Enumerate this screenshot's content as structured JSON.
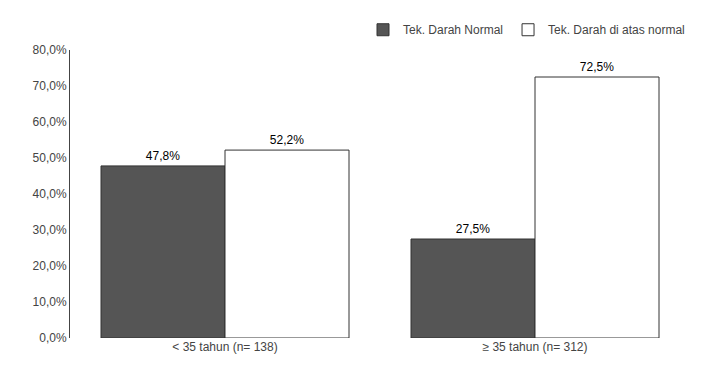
{
  "chart_data": {
    "type": "bar",
    "categories": [
      "< 35 tahun (n= 138)",
      "≥ 35 tahun (n= 312)"
    ],
    "series": [
      {
        "name": "Tek. Darah Normal",
        "color": "#555555",
        "values": [
          47.8,
          27.5
        ],
        "value_labels": [
          "47,8%",
          "27,5%"
        ]
      },
      {
        "name": "Tek. Darah di atas normal",
        "color": "#ffffff",
        "values": [
          52.2,
          72.5
        ],
        "value_labels": [
          "52,2%",
          "72,5%"
        ]
      }
    ],
    "ylim": [
      0,
      80
    ],
    "yticks": [
      {
        "value": 0,
        "label": "0,0%"
      },
      {
        "value": 10,
        "label": "10,0%"
      },
      {
        "value": 20,
        "label": "20,0%"
      },
      {
        "value": 30,
        "label": "30,0%"
      },
      {
        "value": 40,
        "label": "40,0%"
      },
      {
        "value": 50,
        "label": "50,0%"
      },
      {
        "value": 60,
        "label": "60,0%"
      },
      {
        "value": 70,
        "label": "70,0%"
      },
      {
        "value": 80,
        "label": "80,0%"
      }
    ],
    "grid": false,
    "legend": "upper right",
    "data_labels": true
  }
}
